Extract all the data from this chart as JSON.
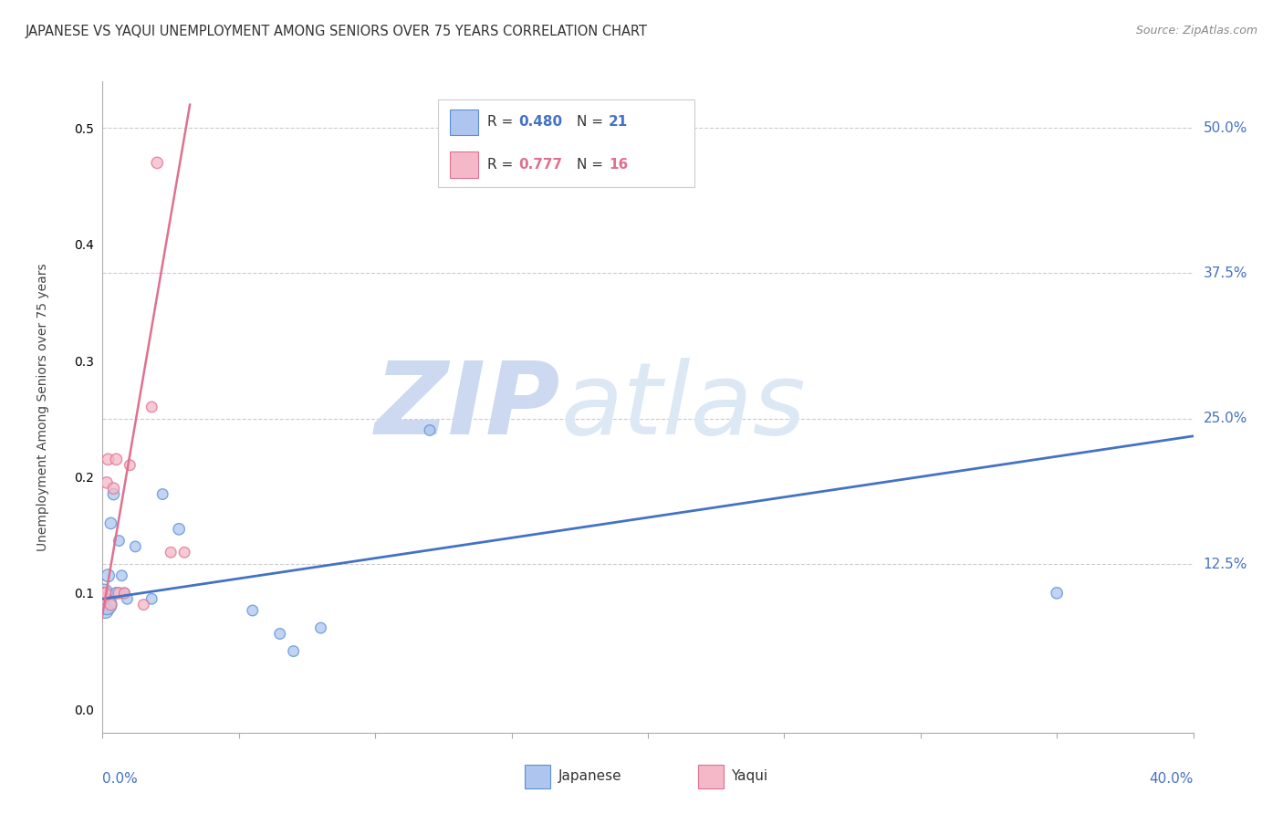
{
  "title": "JAPANESE VS YAQUI UNEMPLOYMENT AMONG SENIORS OVER 75 YEARS CORRELATION CHART",
  "source": "Source: ZipAtlas.com",
  "ylabel": "Unemployment Among Seniors over 75 years",
  "ytick_vals": [
    0.0,
    0.125,
    0.25,
    0.375,
    0.5
  ],
  "ytick_labels": [
    "",
    "12.5%",
    "25.0%",
    "37.5%",
    "50.0%"
  ],
  "xlim": [
    0.0,
    0.4
  ],
  "ylim": [
    -0.02,
    0.54
  ],
  "legend_r1": "0.480",
  "legend_n1": "21",
  "legend_r2": "0.777",
  "legend_n2": "16",
  "japanese_x": [
    0.0005,
    0.001,
    0.0015,
    0.002,
    0.003,
    0.004,
    0.005,
    0.006,
    0.007,
    0.008,
    0.009,
    0.012,
    0.018,
    0.022,
    0.028,
    0.055,
    0.065,
    0.07,
    0.08,
    0.12,
    0.35
  ],
  "japanese_y": [
    0.1,
    0.085,
    0.09,
    0.115,
    0.16,
    0.185,
    0.1,
    0.145,
    0.115,
    0.1,
    0.095,
    0.14,
    0.095,
    0.185,
    0.155,
    0.085,
    0.065,
    0.05,
    0.07,
    0.24,
    0.1
  ],
  "japanese_sizes": [
    200,
    150,
    250,
    100,
    80,
    80,
    80,
    70,
    70,
    70,
    70,
    70,
    70,
    70,
    80,
    70,
    70,
    70,
    70,
    70,
    80
  ],
  "yaqui_x": [
    0.0002,
    0.0005,
    0.001,
    0.0015,
    0.002,
    0.003,
    0.004,
    0.005,
    0.006,
    0.008,
    0.01,
    0.015,
    0.018,
    0.02,
    0.025,
    0.03
  ],
  "yaqui_y": [
    0.1,
    0.095,
    0.1,
    0.195,
    0.215,
    0.09,
    0.19,
    0.215,
    0.1,
    0.1,
    0.21,
    0.09,
    0.26,
    0.47,
    0.135,
    0.135
  ],
  "yaqui_sizes": [
    80,
    80,
    80,
    80,
    80,
    80,
    80,
    80,
    80,
    70,
    70,
    70,
    70,
    80,
    70,
    70
  ],
  "blue_scatter_color": "#aec6ef",
  "blue_edge_color": "#5b8fd4",
  "pink_scatter_color": "#f4b8c8",
  "pink_edge_color": "#e07090",
  "blue_line_color": "#4472c4",
  "pink_line_color": "#e07090",
  "blue_trendline": [
    0.0,
    0.4,
    0.095,
    0.235
  ],
  "pink_trendline": [
    -0.002,
    0.032,
    0.055,
    0.52
  ],
  "watermark_zip": "ZIP",
  "watermark_atlas": "atlas",
  "watermark_color": "#ccd9f0",
  "background_color": "#ffffff",
  "grid_color": "#cccccc"
}
